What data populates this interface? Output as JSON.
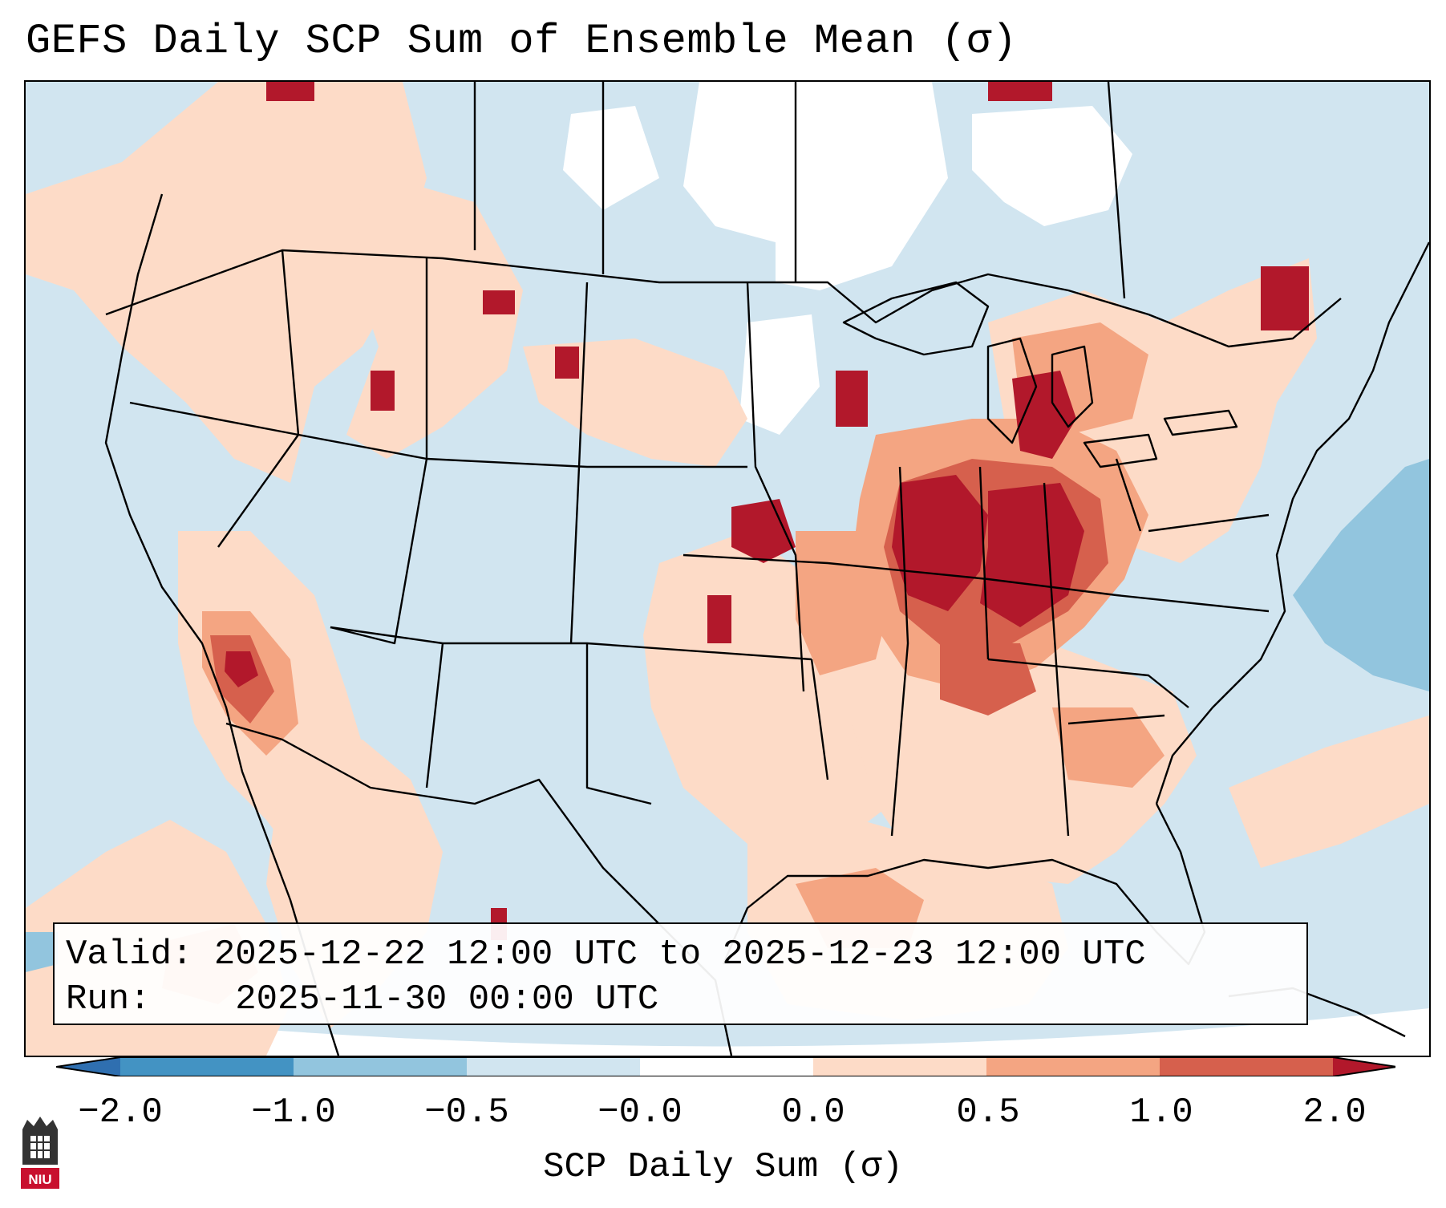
{
  "title": "GEFS Daily SCP Sum of Ensemble Mean (σ)",
  "info": {
    "valid_label": "Valid:",
    "valid_value": "2025-12-22 12:00 UTC to 2025-12-23 12:00 UTC",
    "run_label": "Run:",
    "run_value": "2025-11-30 00:00 UTC"
  },
  "colorbar": {
    "label": "SCP Daily Sum (σ)",
    "ticks": [
      "−2.0",
      "−1.0",
      "−0.5",
      "−0.0",
      "0.0",
      "0.5",
      "1.0",
      "2.0"
    ],
    "bins": [
      {
        "name": "below -2.0",
        "color": "#2f6fb0"
      },
      {
        "name": "-2.0 to -1.0",
        "color": "#4393c3"
      },
      {
        "name": "-1.0 to -0.5",
        "color": "#92c5de"
      },
      {
        "name": "-0.5 to -0.0",
        "color": "#d1e5f0"
      },
      {
        "name": "-0.0 to 0.0",
        "color": "#ffffff"
      },
      {
        "name": "0.0 to 0.5",
        "color": "#fddbc7"
      },
      {
        "name": "0.5 to 1.0",
        "color": "#f4a582"
      },
      {
        "name": "1.0 to 2.0",
        "color": "#d6604d"
      },
      {
        "name": "above 2.0",
        "color": "#b2182b"
      }
    ]
  },
  "colors": {
    "background": "#d1e5f0",
    "neutral": "#ffffff",
    "light_red": "#fddbc7",
    "mid_red": "#f4a582",
    "red": "#d6604d",
    "dark_red": "#b2182b",
    "light_blue": "#92c5de"
  },
  "logo": {
    "text": "NIU",
    "color": "#c8102e"
  }
}
